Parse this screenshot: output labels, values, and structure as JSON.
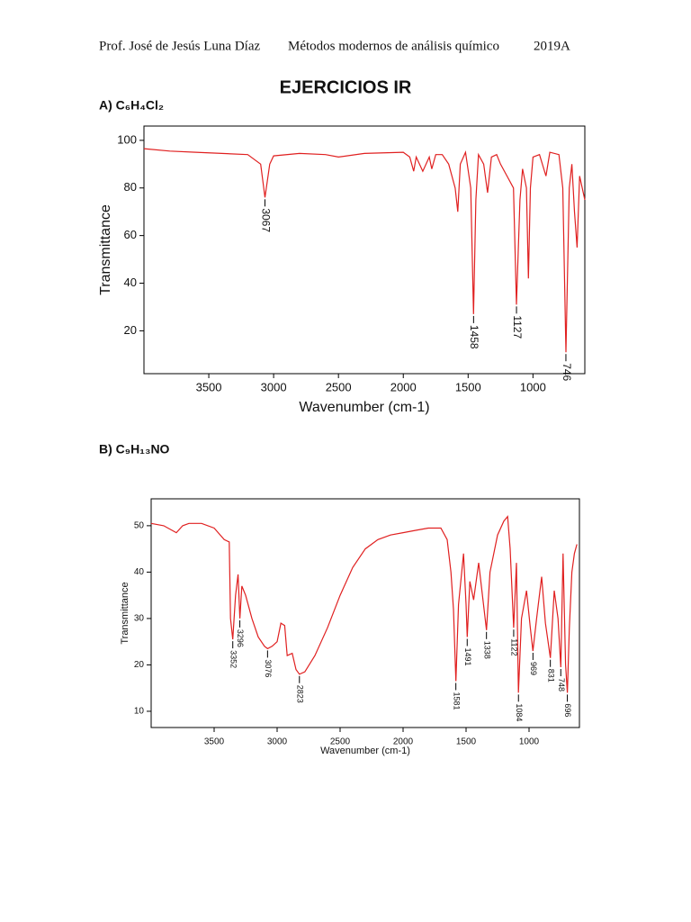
{
  "header": {
    "author": "Prof. José de Jesús Luna Díaz",
    "course": "Métodos modernos de análisis químico",
    "term": "2019A"
  },
  "title": "EJERCICIOS IR",
  "chart_data": [
    {
      "type": "line",
      "title": "A) C₆H₄Cl₂",
      "x_label": "Wavenumber (cm-1)",
      "y_label": "Transmittance",
      "color": "#e02020",
      "xlim": [
        4000,
        600
      ],
      "ylim": [
        2,
        106
      ],
      "xticks": [
        3500,
        3000,
        2500,
        2000,
        1500,
        1000
      ],
      "yticks": [
        20,
        40,
        60,
        80,
        100
      ],
      "x": [
        4000,
        3800,
        3600,
        3400,
        3200,
        3100,
        3067,
        3030,
        3000,
        2800,
        2600,
        2500,
        2300,
        2000,
        1950,
        1920,
        1900,
        1850,
        1800,
        1780,
        1750,
        1700,
        1650,
        1600,
        1580,
        1560,
        1520,
        1480,
        1458,
        1440,
        1420,
        1380,
        1350,
        1320,
        1280,
        1250,
        1200,
        1150,
        1127,
        1100,
        1080,
        1050,
        1035,
        1020,
        1000,
        950,
        900,
        870,
        800,
        770,
        746,
        720,
        700,
        680,
        660,
        640,
        620,
        600
      ],
      "values": [
        96.5,
        95.5,
        95,
        94.5,
        94,
        90,
        76,
        90,
        93.5,
        94.5,
        94,
        93,
        94.5,
        95,
        93,
        87,
        93,
        87,
        93,
        88,
        94,
        94,
        90,
        80,
        70,
        90,
        95,
        80,
        27,
        75,
        94,
        90,
        78,
        93,
        94,
        90,
        85,
        80,
        31,
        75,
        88,
        80,
        42,
        80,
        93,
        94,
        85,
        95,
        94,
        80,
        11,
        80,
        90,
        70,
        55,
        85,
        80,
        75
      ],
      "peaks": [
        {
          "x": 3067,
          "y": 76
        },
        {
          "x": 1458,
          "y": 27
        },
        {
          "x": 1127,
          "y": 31
        },
        {
          "x": 746,
          "y": 11
        }
      ]
    },
    {
      "type": "line",
      "title": "B) C₉H₁₃NO",
      "x_label": "Wavenumber (cm-1)",
      "y_label": "Transmittance",
      "color": "#e02020",
      "xlim": [
        4000,
        600
      ],
      "ylim": [
        6.5,
        55.8
      ],
      "xticks": [
        3500,
        3000,
        2500,
        2000,
        1500,
        1000
      ],
      "yticks": [
        10,
        20,
        30,
        40,
        50
      ],
      "x": [
        4000,
        3900,
        3800,
        3750,
        3700,
        3600,
        3500,
        3420,
        3380,
        3370,
        3352,
        3330,
        3310,
        3296,
        3280,
        3250,
        3200,
        3150,
        3100,
        3076,
        3040,
        3000,
        2970,
        2940,
        2920,
        2880,
        2850,
        2823,
        2780,
        2700,
        2600,
        2500,
        2400,
        2300,
        2200,
        2100,
        2000,
        1900,
        1800,
        1700,
        1650,
        1620,
        1600,
        1581,
        1560,
        1520,
        1500,
        1491,
        1470,
        1440,
        1400,
        1370,
        1338,
        1310,
        1250,
        1200,
        1170,
        1150,
        1122,
        1100,
        1084,
        1060,
        1020,
        990,
        969,
        940,
        900,
        870,
        831,
        800,
        770,
        748,
        730,
        710,
        696,
        680,
        660,
        640,
        620
      ],
      "values": [
        50.5,
        50,
        48.5,
        50,
        50.5,
        50.5,
        49.5,
        47,
        46.5,
        30,
        25.5,
        35,
        39.5,
        30,
        37,
        35,
        30,
        26,
        24,
        23.5,
        24,
        25,
        29,
        28.5,
        22,
        22.5,
        19,
        18,
        18.5,
        22,
        28,
        35,
        41,
        45,
        47,
        48,
        48.5,
        49,
        49.5,
        49.5,
        47,
        40,
        32,
        16.5,
        33,
        44,
        33,
        26,
        38,
        34,
        42,
        35,
        27.5,
        40,
        48,
        51,
        52,
        45,
        28,
        42,
        14,
        30,
        36,
        28,
        23,
        30,
        39,
        29,
        21.5,
        36,
        30,
        19.5,
        44,
        20,
        14,
        28,
        40,
        44,
        46
      ],
      "peaks": [
        {
          "x": 3352,
          "y": 25.5
        },
        {
          "x": 3296,
          "y": 30
        },
        {
          "x": 3076,
          "y": 23.5
        },
        {
          "x": 2823,
          "y": 18
        },
        {
          "x": 1581,
          "y": 16.5
        },
        {
          "x": 1491,
          "y": 26
        },
        {
          "x": 1338,
          "y": 27.5
        },
        {
          "x": 1122,
          "y": 28
        },
        {
          "x": 1084,
          "y": 14
        },
        {
          "x": 969,
          "y": 23
        },
        {
          "x": 831,
          "y": 21.5
        },
        {
          "x": 748,
          "y": 19.5
        },
        {
          "x": 696,
          "y": 14
        }
      ]
    }
  ]
}
